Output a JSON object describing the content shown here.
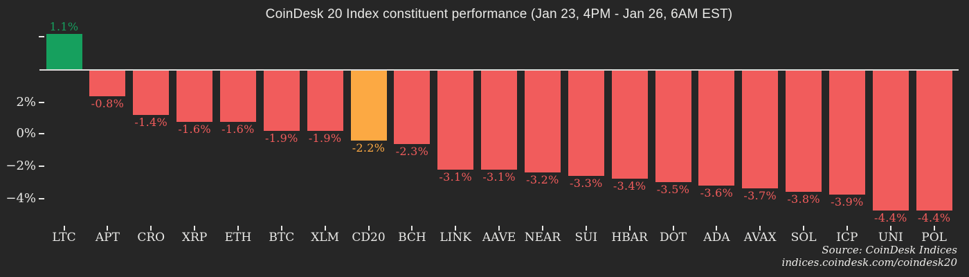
{
  "title": "CoinDesk 20 Index constituent performance (Jan 23, 4PM - Jan 26, 6AM EST)",
  "source": {
    "line1": "Source: CoinDesk Indices",
    "line2": "indices.coindesk.com/coindesk20"
  },
  "colors": {
    "background": "#262626",
    "positive": "#16a05e",
    "negative": "#f15c5c",
    "highlight": "#fca943",
    "text": "#e9e9e7",
    "axis_line": "#dddddb"
  },
  "y_axis": {
    "tick_labels": [
      "",
      "2%",
      "0%",
      "−2%",
      "−4%"
    ]
  },
  "chart_data": {
    "type": "bar",
    "title": "CoinDesk 20 Index constituent performance (Jan 23, 4PM - Jan 26, 6AM EST)",
    "xlabel": "",
    "ylabel": "",
    "legend": false,
    "grid": false,
    "ylim": [
      -4.6,
      1.3
    ],
    "y_tick_labels_shown": [
      "2%",
      "0%",
      "−2%",
      "−4%"
    ],
    "categories": [
      "LTC",
      "APT",
      "CRO",
      "XRP",
      "ETH",
      "BTC",
      "XLM",
      "CD20",
      "BCH",
      "LINK",
      "AAVE",
      "NEAR",
      "SUI",
      "HBAR",
      "DOT",
      "ADA",
      "AVAX",
      "SOL",
      "ICP",
      "UNI",
      "POL"
    ],
    "values": [
      1.1,
      -0.8,
      -1.4,
      -1.6,
      -1.6,
      -1.9,
      -1.9,
      -2.2,
      -2.3,
      -3.1,
      -3.1,
      -3.2,
      -3.3,
      -3.4,
      -3.5,
      -3.6,
      -3.7,
      -3.8,
      -3.9,
      -4.4,
      -4.4
    ],
    "value_labels": [
      "1.1%",
      "-0.8%",
      "-1.4%",
      "-1.6%",
      "-1.6%",
      "-1.9%",
      "-1.9%",
      "-2.2%",
      "-2.3%",
      "-3.1%",
      "-3.1%",
      "-3.2%",
      "-3.3%",
      "-3.4%",
      "-3.5%",
      "-3.6%",
      "-3.7%",
      "-3.8%",
      "-3.9%",
      "-4.4%",
      "-4.4%"
    ],
    "bar_color_keys": [
      "positive",
      "negative",
      "negative",
      "negative",
      "negative",
      "negative",
      "negative",
      "highlight",
      "negative",
      "negative",
      "negative",
      "negative",
      "negative",
      "negative",
      "negative",
      "negative",
      "negative",
      "negative",
      "negative",
      "negative",
      "negative"
    ]
  }
}
